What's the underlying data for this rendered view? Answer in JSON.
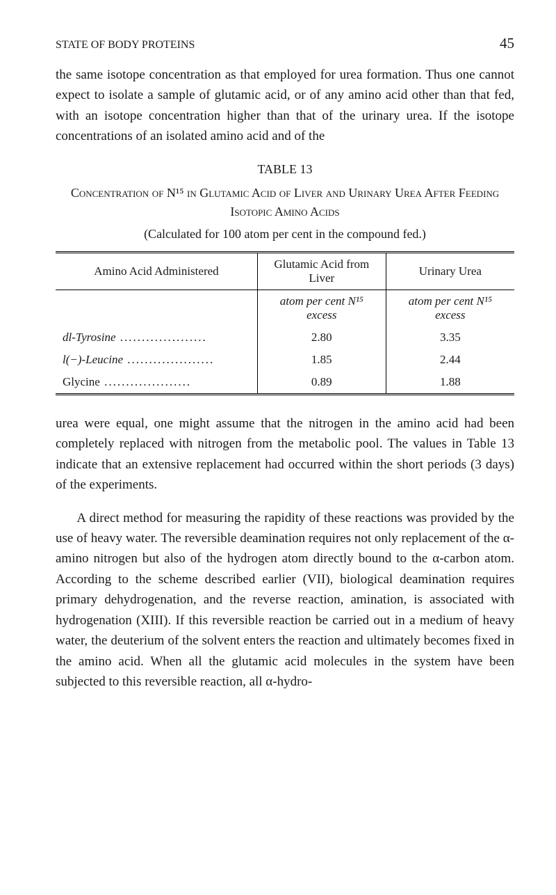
{
  "header": {
    "running_head": "STATE OF BODY PROTEINS",
    "page_number": "45"
  },
  "paragraphs": {
    "p1": "the same isotope concentration as that employed for urea formation. Thus one cannot expect to isolate a sample of glutamic acid, or of any amino acid other than that fed, with an isotope concentration higher than that of the urinary urea. If the isotope concentrations of an isolated amino acid and of the",
    "p2": "urea were equal, one might assume that the nitrogen in the amino acid had been completely replaced with nitrogen from the metabolic pool. The values in Table 13 indicate that an extensive replacement had occurred within the short periods (3 days) of the experiments.",
    "p3": "A direct method for measuring the rapidity of these reactions was provided by the use of heavy water. The reversible deamination requires not only replacement of the α-amino nitrogen but also of the hydrogen atom directly bound to the α-carbon atom. According to the scheme described earlier (VII), biological deamination requires primary dehydrogenation, and the reverse reaction, amination, is associated with hydrogenation (XIII). If this reversible reaction be carried out in a medium of heavy water, the deuterium of the solvent enters the reaction and ultimately becomes fixed in the amino acid. When all the glutamic acid molecules in the system have been subjected to this reversible reaction, all α-hydro-"
  },
  "table": {
    "label": "TABLE 13",
    "title": "Concentration of N¹⁵ in Glutamic Acid of Liver and Urinary Urea After Feeding Isotopic Amino Acids",
    "subtitle": "(Calculated for 100 atom per cent in the compound fed.)",
    "columns": {
      "amino": "Amino Acid Administered",
      "glut": "Glutamic Acid from Liver",
      "urin": "Urinary Urea"
    },
    "subheads": {
      "glut": "atom per cent N¹⁵ excess",
      "urin": "atom per cent N¹⁵ excess"
    },
    "rows": [
      {
        "label": "dl-Tyrosine",
        "glut": "2.80",
        "urin": "3.35"
      },
      {
        "label": "l(−)-Leucine",
        "glut": "1.85",
        "urin": "2.44"
      },
      {
        "label": "Glycine",
        "glut": "0.89",
        "urin": "1.88"
      }
    ]
  }
}
